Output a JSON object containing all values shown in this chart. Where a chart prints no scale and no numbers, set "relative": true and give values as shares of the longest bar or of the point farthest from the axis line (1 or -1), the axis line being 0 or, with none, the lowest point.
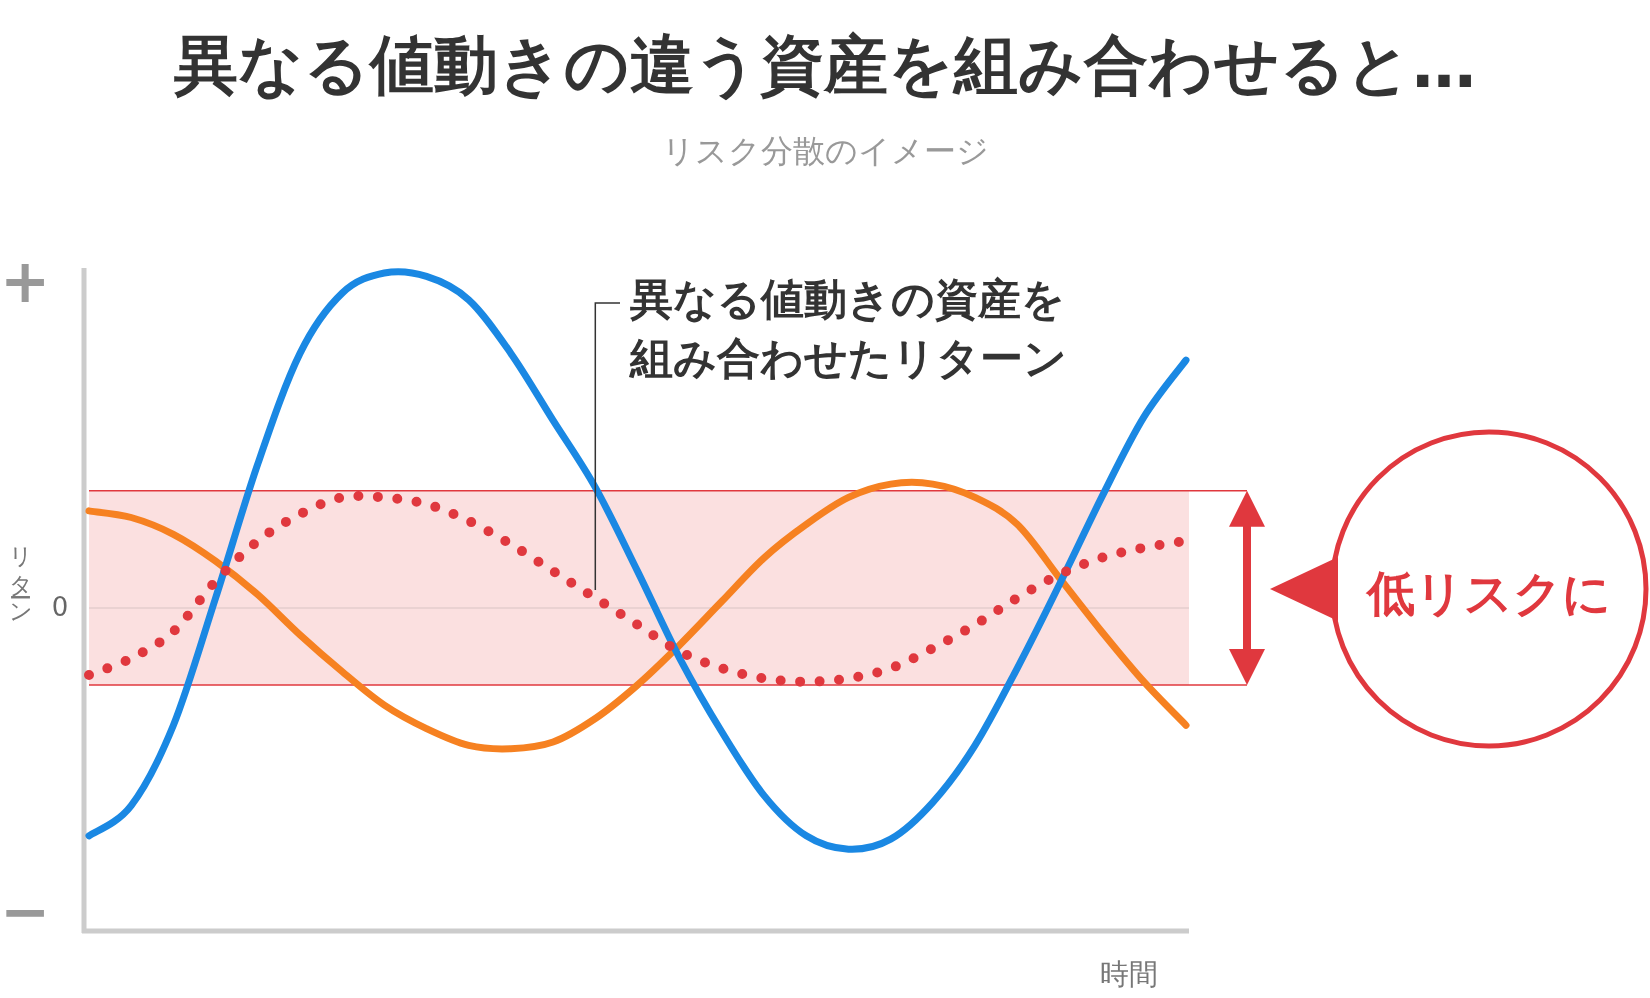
{
  "chart_data": {
    "type": "line",
    "title": "異なる値動きの違う資産を組み合わせると…",
    "subtitle": "リスク分散のイメージ",
    "ylabel": "リターン",
    "xlabel": "時間",
    "relative": true,
    "categories": [
      null,
      null,
      null,
      null,
      null,
      null,
      null,
      null,
      null,
      null,
      null,
      null,
      null,
      null,
      null,
      null,
      null,
      null,
      null,
      null,
      null,
      null,
      null,
      null,
      null,
      null,
      null
    ],
    "series": [
      {
        "color": "#f68121",
        "values": [
          0.29,
          0.27,
          0.22,
          0.14,
          0.04,
          -0.08,
          -0.19,
          -0.29,
          -0.36,
          -0.41,
          -0.42,
          -0.4,
          -0.33,
          -0.23,
          -0.11,
          0.02,
          0.15,
          0.25,
          0.33,
          0.37,
          0.37,
          0.33,
          0.25,
          0.09,
          -0.07,
          -0.22,
          -0.35
        ]
      },
      {
        "color": "#1a88e3",
        "values": [
          -0.68,
          -0.59,
          -0.35,
          0.03,
          0.43,
          0.76,
          0.94,
          1.0,
          0.99,
          0.92,
          0.76,
          0.56,
          0.36,
          0.11,
          -0.15,
          -0.37,
          -0.56,
          -0.68,
          -0.72,
          -0.69,
          -0.58,
          -0.41,
          -0.18,
          0.07,
          0.33,
          0.57,
          0.74
        ]
      },
      {
        "name": "異なる値動きの資産を組み合わせたリターン",
        "color": "#e0383e",
        "line_style": "dotted",
        "values": [
          -0.2,
          -0.15,
          -0.07,
          0.08,
          0.2,
          0.28,
          0.33,
          0.33,
          0.31,
          0.26,
          0.19,
          0.11,
          0.03,
          -0.05,
          -0.13,
          -0.18,
          -0.21,
          -0.22,
          -0.21,
          -0.18,
          -0.12,
          -0.05,
          0.03,
          0.1,
          0.15,
          0.18,
          0.2
        ]
      }
    ],
    "bands": [
      {
        "axis": "y",
        "from": -0.23,
        "to": 0.35,
        "color": "#fbe0e0"
      }
    ],
    "ref_lines": [
      {
        "axis": "y",
        "value": 0,
        "label": "0",
        "color": "#ead2d2"
      },
      {
        "axis": "y",
        "value": 0.35,
        "color": "#e0383e"
      },
      {
        "axis": "y",
        "value": -0.23,
        "color": "#e0383e"
      }
    ],
    "annotations": [
      "+",
      "−",
      "低リスクに"
    ]
  }
}
